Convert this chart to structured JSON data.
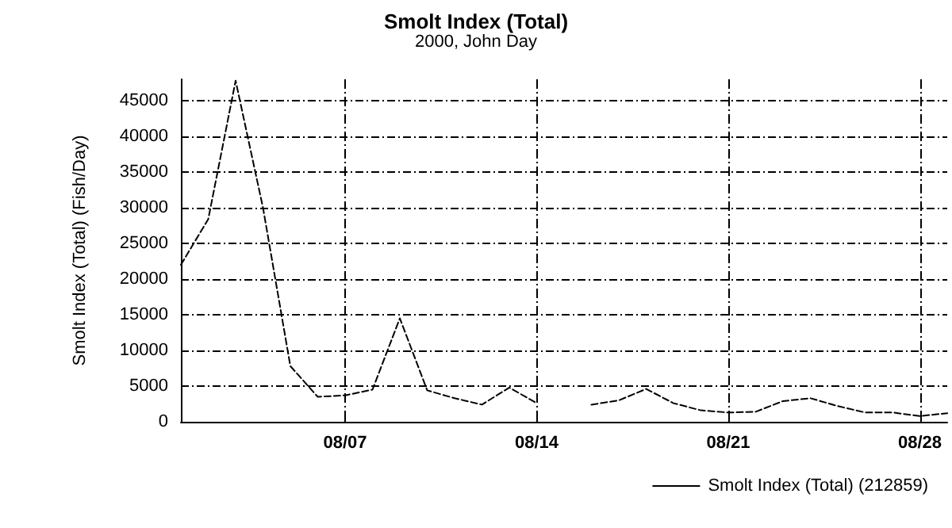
{
  "chart_data": {
    "type": "line",
    "title": "Smolt Index (Total)",
    "subtitle": "2000, John Day",
    "ylabel": "Smolt Index (Total) (Fish/Day)",
    "x": [
      "2000-08-01",
      "2000-08-02",
      "2000-08-03",
      "2000-08-04",
      "2000-08-05",
      "2000-08-06",
      "2000-08-07",
      "2000-08-08",
      "2000-08-09",
      "2000-08-10",
      "2000-08-11",
      "2000-08-12",
      "2000-08-13",
      "2000-08-14",
      "2000-08-15",
      "2000-08-16",
      "2000-08-17",
      "2000-08-18",
      "2000-08-19",
      "2000-08-20",
      "2000-08-21",
      "2000-08-22",
      "2000-08-23",
      "2000-08-24",
      "2000-08-25",
      "2000-08-26",
      "2000-08-27",
      "2000-08-28",
      "2000-08-29"
    ],
    "series": [
      {
        "name": "Smolt Index (Total) (212859)",
        "color": "#000000",
        "values": [
          22000,
          28400,
          47800,
          30000,
          7800,
          3500,
          3700,
          4500,
          14500,
          4400,
          3300,
          2400,
          4800,
          2600,
          null,
          2400,
          3000,
          4600,
          2600,
          1600,
          1300,
          1400,
          2900,
          3300,
          2200,
          1300,
          1300,
          800,
          1200
        ]
      }
    ],
    "xlim": [
      "2000-08-01",
      "2000-08-29"
    ],
    "xticks": [
      {
        "value": "2000-08-07",
        "label": "08/07"
      },
      {
        "value": "2000-08-14",
        "label": "08/14"
      },
      {
        "value": "2000-08-21",
        "label": "08/21"
      },
      {
        "value": "2000-08-28",
        "label": "08/28"
      }
    ],
    "ylim": [
      0,
      48000
    ],
    "yticks": [
      0,
      5000,
      10000,
      15000,
      20000,
      25000,
      30000,
      35000,
      40000,
      45000
    ],
    "grid": true,
    "legend": "bottom right",
    "marker": "none",
    "line_style": "dashed"
  }
}
